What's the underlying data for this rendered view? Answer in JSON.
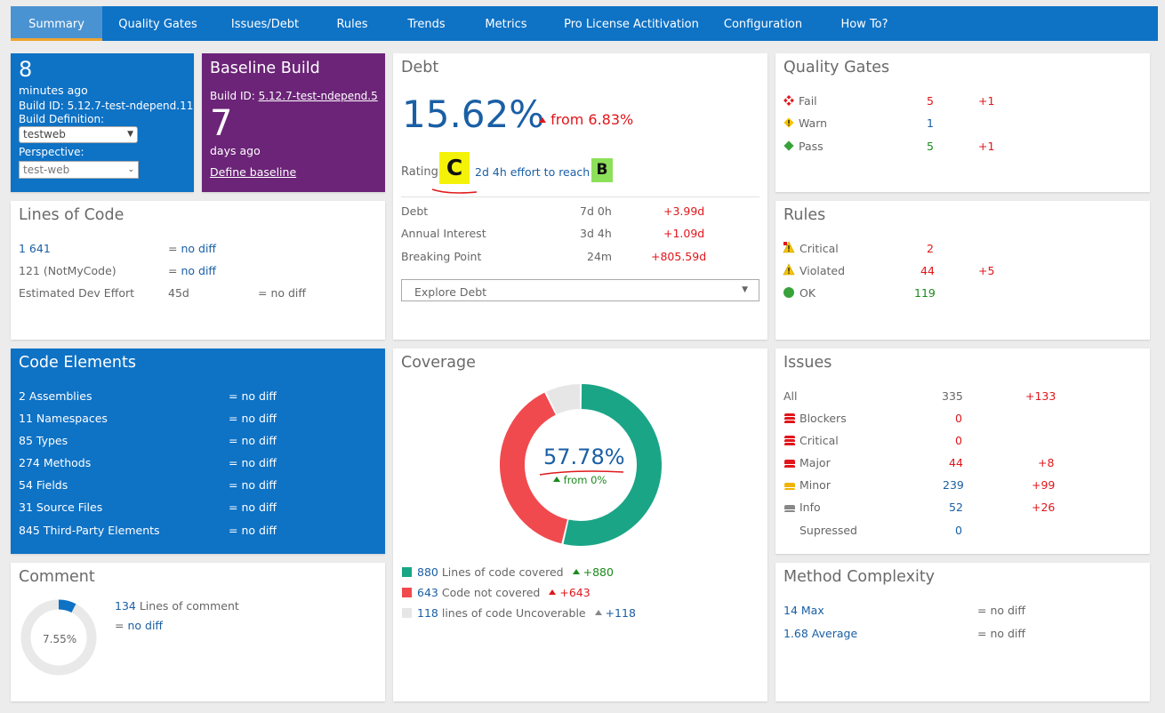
{
  "nav": {
    "tabs": [
      "Summary",
      "Quality Gates",
      "Issues/Debt",
      "Rules",
      "Trends",
      "Metrics",
      "Pro License Actitivation",
      "Configuration",
      "How To?"
    ]
  },
  "build": {
    "minutes": "8",
    "minutes_label": "minutes ago",
    "build_id": "Build ID: 5.12.7-test-ndepend.11",
    "definition_label": "Build Definition:",
    "definition_value": "testweb",
    "perspective_label": "Perspective:",
    "perspective_value": "test-web"
  },
  "baseline": {
    "title": "Baseline Build",
    "build_id_label": "Build ID:",
    "build_id_value": "5.12.7-test-ndepend.5",
    "days": "7",
    "days_label": "days ago",
    "define_link": "Define baseline"
  },
  "debt": {
    "title": "Debt",
    "percent": "15.62%",
    "from": "from 6.83%",
    "rating_label": "Rating",
    "rating": "C",
    "effort": "2d 4h effort to reach",
    "target_rating": "B",
    "rows": [
      {
        "label": "Debt",
        "value": "7d 0h",
        "diff": "+3.99d"
      },
      {
        "label": "Annual Interest",
        "value": "3d 4h",
        "diff": "+1.09d"
      },
      {
        "label": "Breaking Point",
        "value": "24m",
        "diff": "+805.59d"
      }
    ],
    "explore": "Explore Debt"
  },
  "quality_gates": {
    "title": "Quality Gates",
    "rows": [
      {
        "label": "Fail",
        "value": "5",
        "diff": "+1"
      },
      {
        "label": "Warn",
        "value": "1",
        "diff": ""
      },
      {
        "label": "Pass",
        "value": "5",
        "diff": "+1"
      }
    ]
  },
  "loc": {
    "title": "Lines of Code",
    "rows": [
      {
        "value": "1 641",
        "diff_prefix": "=",
        "diff": "no diff"
      },
      {
        "value": "121 (NotMyCode)",
        "diff_prefix": "=",
        "diff": "no diff"
      },
      {
        "label": "Estimated Dev Effort",
        "value": "45d",
        "diff": "= no diff"
      }
    ]
  },
  "rules": {
    "title": "Rules",
    "rows": [
      {
        "label": "Critical",
        "value": "2",
        "diff": ""
      },
      {
        "label": "Violated",
        "value": "44",
        "diff": "+5"
      },
      {
        "label": "OK",
        "value": "119",
        "diff": ""
      }
    ]
  },
  "code_elements": {
    "title": "Code Elements",
    "rows": [
      {
        "label": "2 Assemblies",
        "diff": "= no diff"
      },
      {
        "label": "11 Namespaces",
        "diff": "= no diff"
      },
      {
        "label": "85 Types",
        "diff": "= no diff"
      },
      {
        "label": "274 Methods",
        "diff": "= no diff"
      },
      {
        "label": "54 Fields",
        "diff": "= no diff"
      },
      {
        "label": "31 Source Files",
        "diff": "= no diff"
      },
      {
        "label": "845 Third-Party Elements",
        "diff": "= no diff"
      }
    ]
  },
  "coverage": {
    "title": "Coverage",
    "percent": "57.78%",
    "from": "from 0%",
    "legend": [
      {
        "value": "880",
        "label": "Lines of code covered",
        "diff": "+880",
        "color": "#1aa586"
      },
      {
        "value": "643",
        "label": "Code not covered",
        "diff": "+643",
        "color": "#f04a4f"
      },
      {
        "value": "118",
        "label": "lines of code Uncoverable",
        "diff": "+118",
        "color": "#e6e6e6"
      }
    ]
  },
  "issues": {
    "title": "Issues",
    "rows": [
      {
        "label": "All",
        "value": "335",
        "diff": "+133"
      },
      {
        "label": "Blockers",
        "value": "0",
        "diff": ""
      },
      {
        "label": "Critical",
        "value": "0",
        "diff": ""
      },
      {
        "label": "Major",
        "value": "44",
        "diff": "+8"
      },
      {
        "label": "Minor",
        "value": "239",
        "diff": "+99"
      },
      {
        "label": "Info",
        "value": "52",
        "diff": "+26"
      },
      {
        "label": "Supressed",
        "value": "0",
        "diff": ""
      }
    ]
  },
  "comment": {
    "title": "Comment",
    "percent": "7.55%",
    "value": "134",
    "label": "Lines of comment",
    "diff_prefix": "=",
    "diff": "no diff"
  },
  "complexity": {
    "title": "Method Complexity",
    "rows": [
      {
        "label": "14 Max",
        "diff": "= no diff"
      },
      {
        "label": "1.68 Average",
        "diff": "= no diff"
      }
    ]
  }
}
